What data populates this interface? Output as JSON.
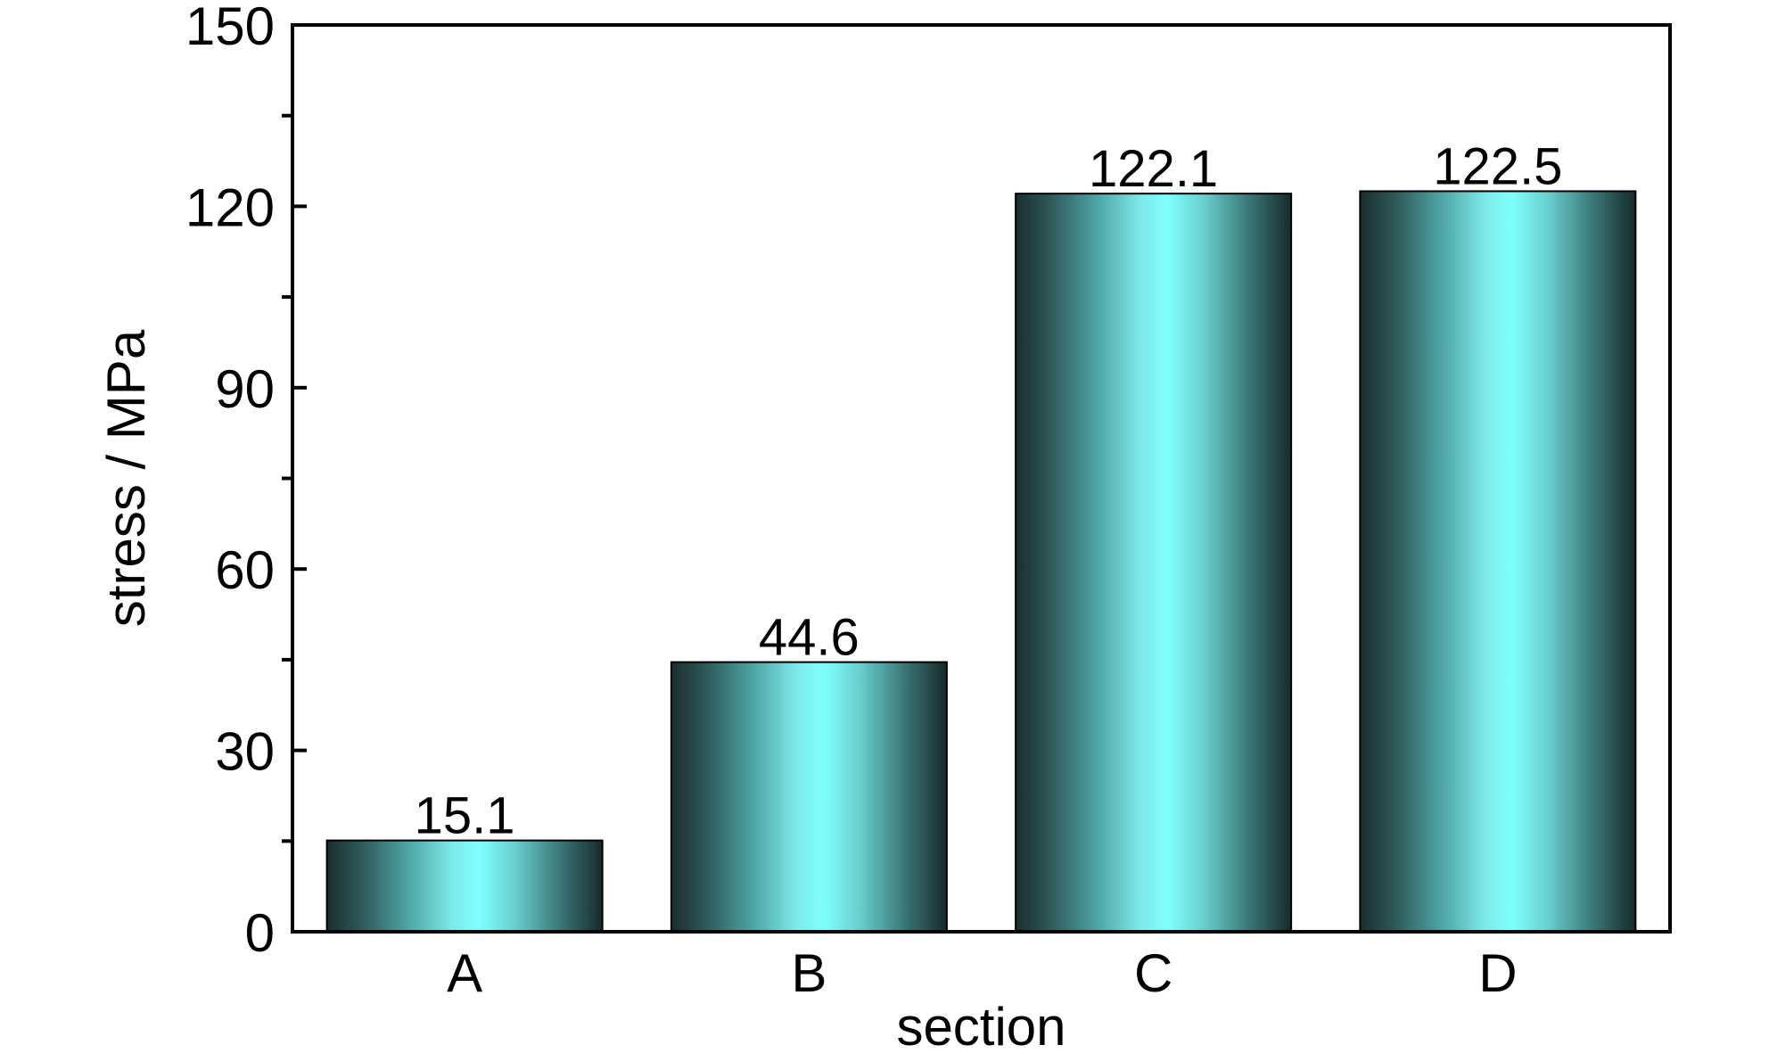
{
  "chart_data": {
    "type": "bar",
    "categories": [
      "A",
      "B",
      "C",
      "D"
    ],
    "values": [
      15.1,
      44.6,
      122.1,
      122.5
    ],
    "data_labels": [
      "15.1",
      "44.6",
      "122.1",
      "122.5"
    ],
    "xlabel": "section",
    "ylabel": "stress / MPa",
    "ylim": [
      0,
      150
    ],
    "yticks": [
      0,
      30,
      60,
      90,
      120,
      150
    ],
    "ytick_labels": [
      "0",
      "30",
      "60",
      "90",
      "120",
      "150"
    ],
    "grid": false,
    "legend": "none",
    "colors": {
      "bar_edge": "#1a2e2e",
      "bar_center": "#80ffff",
      "axis": "#000000"
    }
  }
}
